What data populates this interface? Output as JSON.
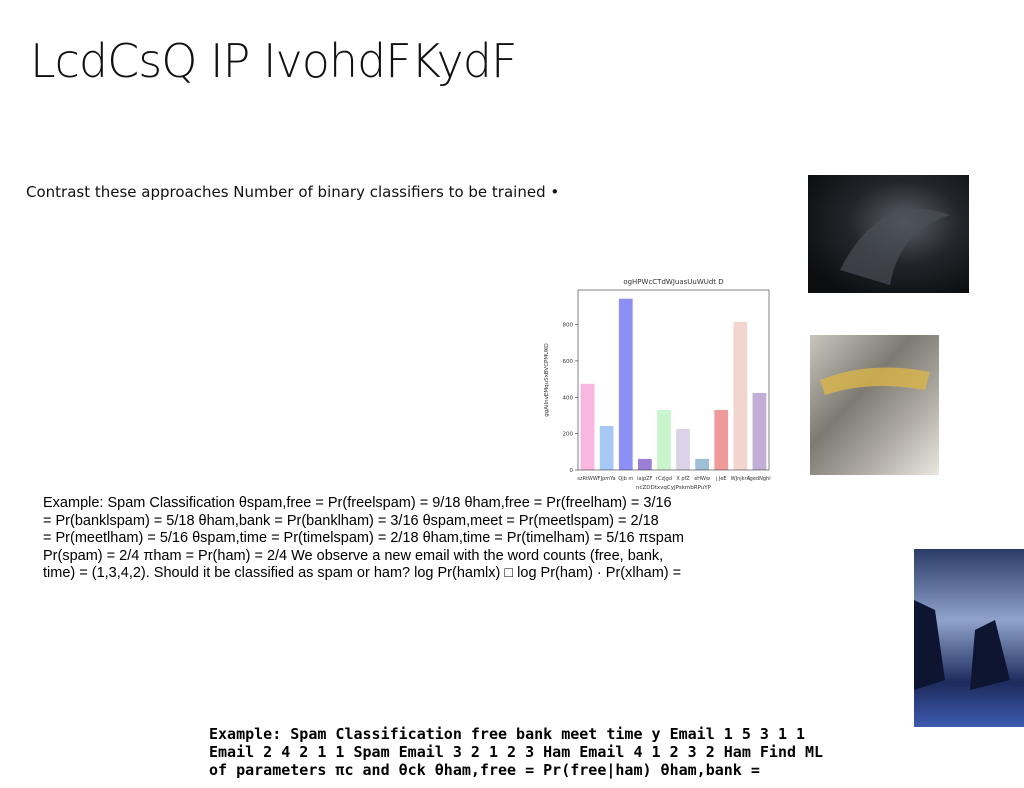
{
  "slide": {
    "title": "LcdCsQ IP IvohdFKydF",
    "intro": "Contrast these approaches Number of binary classifiers to be trained •",
    "example_lines": [
      "Example: Spam Classification θspam,free = Pr(freelspam) = 9/18 θham,free = Pr(freelham) = 3/16",
      "= Pr(banklspam) = 5/18 θham,bank = Pr(banklham) = 3/16 θspam,meet = Pr(meetlspam) = 2/18",
      "= Pr(meetlham) = 5/16 θspam,time = Pr(timelspam) = 2/18 θham,time = Pr(timelham) = 5/16 πspam",
      "Pr(spam) = 2/4 πham = Pr(ham) = 2/4 We observe a new email with the word counts (free, bank,",
      "time) = (1,3,4,2). Should it be classified as spam or ham? log Pr(hamlx) □ log Pr(ham) · Pr(xlham) ="
    ],
    "bottom_lines": [
      "Example: Spam Classification free bank meet time y Email 1 5 3 1 1",
      "Email 2 4 2 1 1 Spam Email 3 2 1 2 3 Ham Email 4 1 2 3 2 Ham Find ML",
      "of parameters πc and θck θham,free = Pr(free|ham) θham,bank ="
    ]
  },
  "chart_data": {
    "type": "bar",
    "title": "ogHPWcCTdWJuasUuWUdt D",
    "x_label": "ncZDDtxvqCyJPskmbRPuYP",
    "y_label": "ggAiInvEMquSxBVCPMUKO",
    "categories": [
      "szRtWW",
      "FJpmYa",
      "Qjb m",
      "lajpZF",
      "rCzJgd",
      "X pfZ",
      "eHWw",
      "j JeE",
      "WJnjkrA",
      "lgedNghl"
    ],
    "values": [
      474,
      242,
      942,
      61,
      330,
      226,
      61,
      330,
      815,
      424
    ],
    "colors": [
      "#f9b6e0",
      "#a6c8f5",
      "#8c8ff5",
      "#9b7fd6",
      "#c8f5cc",
      "#ddd3e8",
      "#9fbfd6",
      "#ee9a9a",
      "#f3d5d0",
      "#c1aed6"
    ],
    "ylim": [
      0,
      990
    ],
    "yticks": [
      0,
      200,
      400,
      600,
      800
    ]
  }
}
